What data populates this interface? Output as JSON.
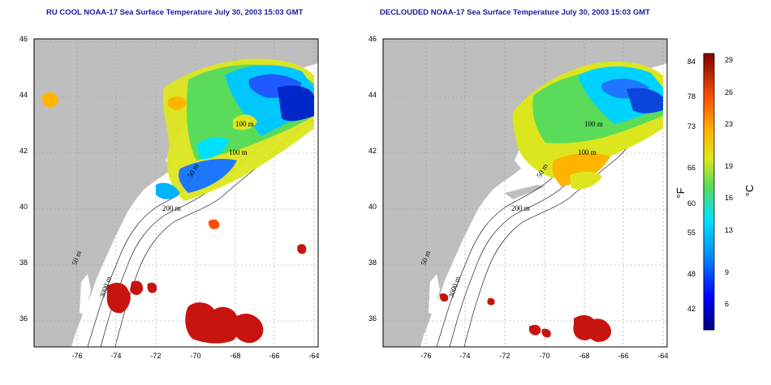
{
  "titles": {
    "left": "RU COOL NOAA-17 Sea Surface Temperature July 30, 2003 15:03 GMT",
    "right": "DECLOUDED NOAA-17 Sea Surface Temperature July 30, 2003 15:03 GMT"
  },
  "axes": {
    "x_ticks": [
      "-76",
      "-74",
      "-72",
      "-70",
      "-68",
      "-66",
      "-64"
    ],
    "y_ticks": [
      "46",
      "44",
      "42",
      "40",
      "38",
      "36"
    ]
  },
  "contour_labels": {
    "left": [
      "100 m",
      "100 m",
      "50 m",
      "200 m",
      "50 m",
      "3000 m"
    ],
    "right": [
      "100 m",
      "100 m",
      "50 m",
      "200 m",
      "50 m",
      "3000 m"
    ]
  },
  "colorbar": {
    "fahrenheit_ticks": [
      "84",
      "78",
      "73",
      "66",
      "60",
      "55",
      "48",
      "42"
    ],
    "celsius_ticks": [
      "29",
      "26",
      "23",
      "19",
      "16",
      "13",
      "9",
      "6"
    ],
    "unit_f": "°F",
    "unit_c": "°C"
  },
  "colors": {
    "land": "#bebebe",
    "ocean": "#ffffff",
    "title": "#1a1aa0",
    "warm": "#c8140f",
    "cool": "#1e8cff"
  }
}
